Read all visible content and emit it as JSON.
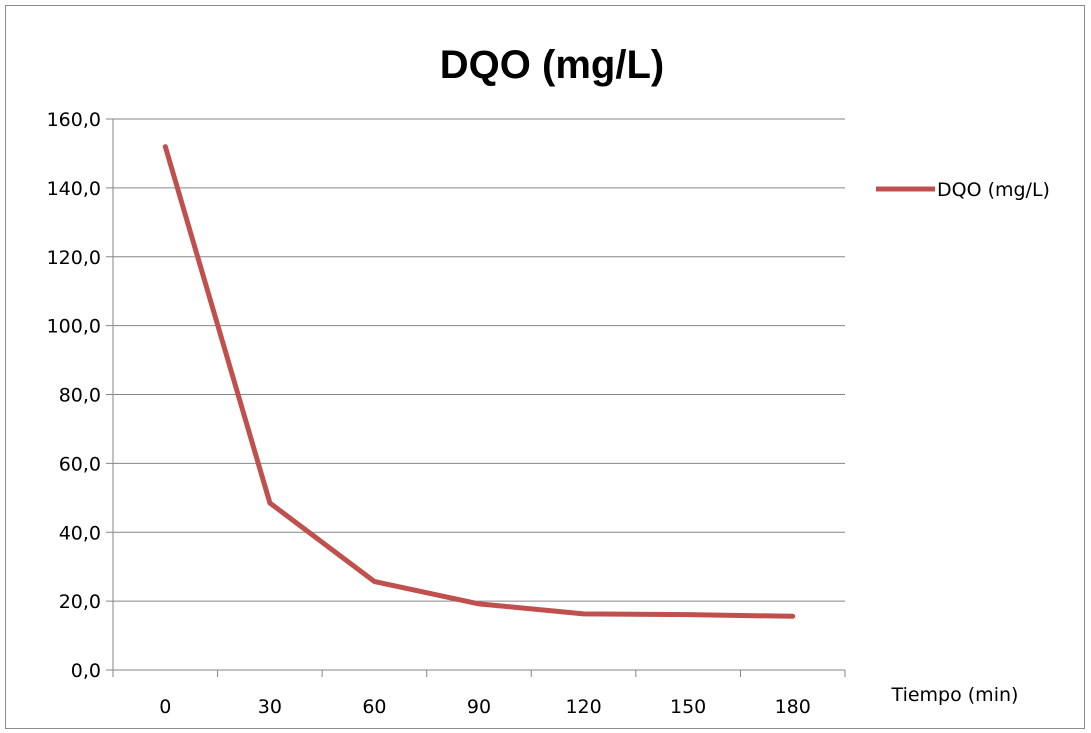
{
  "chart_data": {
    "type": "line",
    "title": "DQO (mg/L)",
    "xlabel": "Tiempo (min)",
    "ylabel": "",
    "categories": [
      "0",
      "30",
      "60",
      "90",
      "120",
      "150",
      "180"
    ],
    "y_ticks": [
      "0,0",
      "20,0",
      "40,0",
      "60,0",
      "80,0",
      "100,0",
      "120,0",
      "140,0",
      "160,0"
    ],
    "ylim": [
      0,
      160
    ],
    "grid": true,
    "legend_position": "right",
    "series": [
      {
        "name": "DQO (mg/L)",
        "color": "#c0504d",
        "values": [
          152.0,
          48.5,
          25.7,
          19.2,
          16.3,
          16.1,
          15.6
        ]
      }
    ]
  }
}
